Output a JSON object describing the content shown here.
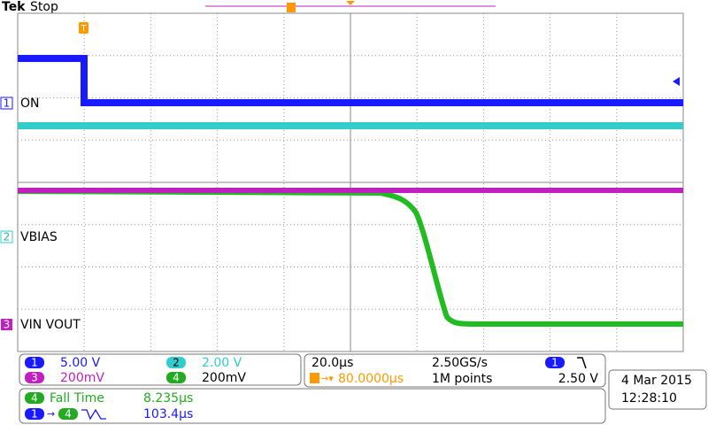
{
  "header": {
    "brand": "Tek",
    "status": "Stop"
  },
  "channels": [
    {
      "number": "1",
      "label": "ON",
      "scale": "5.00 V"
    },
    {
      "number": "2",
      "label": "VBIAS",
      "scale": "2.00 V"
    },
    {
      "number": "3",
      "label": "VIN VOUT",
      "scale": "200mV"
    },
    {
      "number": "4",
      "scale": "200mV"
    }
  ],
  "timebase": {
    "scale": "20.0µs",
    "sample_rate": "2.50GS/s",
    "trigger_channel": "1",
    "trigger_position": "80.0000µs",
    "record_length": "1M points",
    "trigger_level": "2.50 V"
  },
  "date": "4 Mar 2015",
  "time": "12:28:10",
  "measurements": [
    {
      "channel": "4",
      "name": "Fall Time",
      "value": "8.235µs"
    },
    {
      "from": "1",
      "to": "4",
      "value": "103.4µs"
    }
  ]
}
